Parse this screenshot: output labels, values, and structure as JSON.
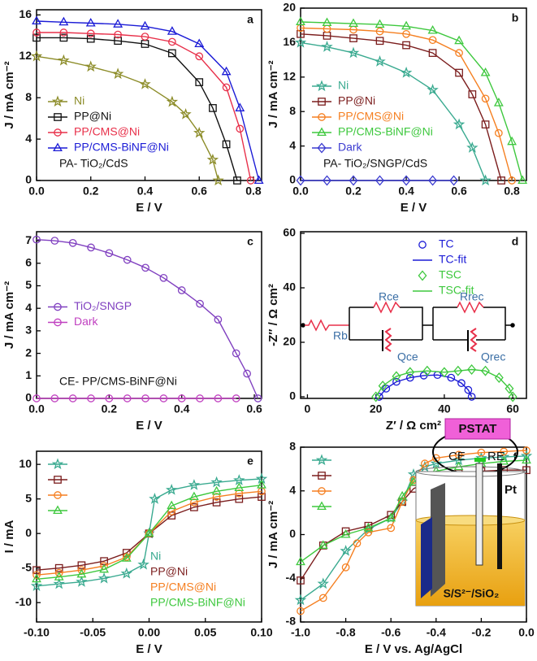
{
  "chart_data": [
    {
      "type": "line",
      "panel": "a",
      "note": "PA- TiO₂/CdS",
      "xlabel": "E / V",
      "ylabel": "J / mA cm⁻²",
      "xlim": [
        0,
        0.83
      ],
      "ylim": [
        0,
        16.5
      ],
      "xticks": [
        {
          "value": 0,
          "label": "0.0"
        },
        {
          "value": 0.2,
          "label": "0.2"
        },
        {
          "value": 0.4,
          "label": "0.4"
        },
        {
          "value": 0.6,
          "label": "0.6"
        },
        {
          "value": 0.8,
          "label": "0.8"
        }
      ],
      "yticks": [
        0,
        4,
        8,
        12,
        16
      ],
      "legend": "lower left",
      "series": [
        {
          "name": "Ni",
          "color": "#8c8c28",
          "marker": "star",
          "x": [
            0,
            0.1,
            0.2,
            0.3,
            0.4,
            0.5,
            0.55,
            0.6,
            0.65,
            0.67
          ],
          "values": [
            12,
            11.6,
            11,
            10.3,
            9.3,
            7.6,
            6.4,
            4.6,
            2,
            0
          ]
        },
        {
          "name": "PP@Ni",
          "color": "#111111",
          "marker": "square",
          "x": [
            0,
            0.1,
            0.2,
            0.3,
            0.4,
            0.5,
            0.6,
            0.65,
            0.7,
            0.74
          ],
          "values": [
            13.8,
            13.8,
            13.7,
            13.5,
            13.2,
            12.3,
            9.5,
            7,
            3.5,
            0
          ]
        },
        {
          "name": "PP/CMS@Ni",
          "color": "#e8304a",
          "marker": "circle",
          "x": [
            0,
            0.1,
            0.2,
            0.3,
            0.4,
            0.5,
            0.6,
            0.7,
            0.75,
            0.79
          ],
          "values": [
            14.3,
            14.3,
            14.2,
            14.1,
            13.9,
            13.4,
            12,
            9,
            5,
            0
          ]
        },
        {
          "name": "PP/CMS-BiNF@Ni",
          "color": "#1b1bd6",
          "marker": "triangle",
          "x": [
            0,
            0.1,
            0.2,
            0.3,
            0.4,
            0.5,
            0.6,
            0.7,
            0.75,
            0.82
          ],
          "values": [
            15.4,
            15.3,
            15.2,
            15.1,
            14.9,
            14.4,
            13.2,
            10.5,
            7,
            0
          ]
        }
      ]
    },
    {
      "type": "line",
      "panel": "b",
      "note": "PA- TiO₂/SNGP/CdS",
      "xlabel": "E / V",
      "ylabel": "J / mA cm⁻²",
      "xlim": [
        0,
        0.855
      ],
      "ylim": [
        0,
        20
      ],
      "xticks": [
        {
          "value": 0,
          "label": "0.0"
        },
        {
          "value": 0.2,
          "label": "0.2"
        },
        {
          "value": 0.4,
          "label": "0.4"
        },
        {
          "value": 0.6,
          "label": "0.6"
        },
        {
          "value": 0.8,
          "label": "0.8"
        }
      ],
      "yticks": [
        0,
        4,
        8,
        12,
        16,
        20
      ],
      "legend": "center left",
      "series": [
        {
          "name": "Ni",
          "color": "#3aaa90",
          "marker": "star",
          "x": [
            0,
            0.1,
            0.2,
            0.3,
            0.4,
            0.5,
            0.6,
            0.65,
            0.7
          ],
          "values": [
            16,
            15.5,
            14.8,
            13.8,
            12.5,
            10.5,
            6.5,
            3.8,
            0
          ]
        },
        {
          "name": "PP@Ni",
          "color": "#7b1d1d",
          "marker": "square",
          "x": [
            0,
            0.1,
            0.2,
            0.3,
            0.4,
            0.5,
            0.6,
            0.65,
            0.7,
            0.76
          ],
          "values": [
            17,
            16.8,
            16.5,
            16.2,
            15.7,
            14.8,
            12.5,
            10,
            6.5,
            0
          ]
        },
        {
          "name": "PP/CMS@Ni",
          "color": "#f57f20",
          "marker": "circle",
          "x": [
            0,
            0.1,
            0.2,
            0.3,
            0.4,
            0.5,
            0.6,
            0.7,
            0.75,
            0.8
          ],
          "values": [
            17.7,
            17.6,
            17.5,
            17.3,
            17,
            16.3,
            14.8,
            9.5,
            5.5,
            0
          ]
        },
        {
          "name": "PP/CMS-BiNF@Ni",
          "color": "#3ec83e",
          "marker": "triangle",
          "x": [
            0,
            0.1,
            0.2,
            0.3,
            0.4,
            0.5,
            0.6,
            0.7,
            0.75,
            0.8,
            0.84
          ],
          "values": [
            18.4,
            18.3,
            18.2,
            18.1,
            17.9,
            17.4,
            16.2,
            12.5,
            9,
            4.5,
            0
          ]
        },
        {
          "name": "Dark",
          "color": "#3a3ad0",
          "marker": "diamond",
          "x": [
            0,
            0.1,
            0.2,
            0.3,
            0.4,
            0.5,
            0.58
          ],
          "values": [
            0,
            0,
            0,
            0,
            0,
            0,
            0
          ]
        }
      ]
    },
    {
      "type": "line",
      "panel": "c",
      "note": "CE- PP/CMS-BiNF@Ni",
      "xlabel": "E / V",
      "ylabel": "J / mA cm⁻²",
      "xlim": [
        0,
        0.62
      ],
      "ylim": [
        0,
        7.4
      ],
      "xticks": [
        {
          "value": 0,
          "label": "0.0"
        },
        {
          "value": 0.2,
          "label": "0.2"
        },
        {
          "value": 0.4,
          "label": "0.4"
        },
        {
          "value": 0.6,
          "label": "0.6"
        }
      ],
      "yticks": [
        0,
        1,
        2,
        3,
        4,
        5,
        6,
        7
      ],
      "legend": "center left",
      "series": [
        {
          "name": "TiO₂/SNGP",
          "color": "#8040c0",
          "marker": "circle",
          "x": [
            0,
            0.05,
            0.1,
            0.15,
            0.2,
            0.25,
            0.3,
            0.35,
            0.4,
            0.45,
            0.5,
            0.55,
            0.58,
            0.61
          ],
          "values": [
            7.05,
            7,
            6.9,
            6.7,
            6.45,
            6.15,
            5.8,
            5.35,
            4.8,
            4.2,
            3.5,
            2.0,
            1.1,
            0
          ]
        },
        {
          "name": "Dark",
          "color": "#c040c0",
          "marker": "circle",
          "x": [
            0,
            0.05,
            0.1,
            0.15,
            0.2,
            0.25,
            0.3,
            0.35,
            0.4,
            0.45,
            0.5,
            0.55
          ],
          "values": [
            0,
            0,
            0,
            0,
            0,
            0,
            0,
            0,
            0,
            0,
            0,
            0
          ]
        }
      ]
    },
    {
      "type": "scatter",
      "panel": "d",
      "xlabel": "Z′ / Ω cm²",
      "ylabel": "-Z″ / Ω cm²",
      "xlim": [
        -2,
        64
      ],
      "ylim": [
        -0.6,
        60.6
      ],
      "xticks": [
        0,
        20,
        40,
        60
      ],
      "yticks": [
        0,
        20,
        40,
        60
      ],
      "legend": "upper right",
      "circuit": [
        "Rb",
        "Rce",
        "Qce",
        "Rrec",
        "Qrec"
      ],
      "series": [
        {
          "name": "TC",
          "color": "#1b1bd6",
          "marker": "circle",
          "line": false,
          "x": [
            21,
            23,
            26,
            30,
            34,
            38,
            42,
            45,
            47,
            48
          ],
          "values": [
            0,
            3,
            5.5,
            7,
            7.8,
            8,
            7,
            5,
            2.5,
            0
          ]
        },
        {
          "name": "TC-fit",
          "color": "#1b1bd6",
          "marker": "none",
          "x": [
            21,
            23,
            26,
            30,
            34,
            38,
            42,
            45,
            47,
            48
          ],
          "values": [
            0,
            3,
            5.5,
            7,
            7.8,
            8,
            7,
            5,
            2.5,
            0
          ]
        },
        {
          "name": "TSC",
          "color": "#3ec83e",
          "marker": "diamond",
          "line": false,
          "x": [
            20,
            22,
            26,
            30,
            35,
            40,
            44,
            48,
            52,
            56,
            59,
            60
          ],
          "values": [
            0,
            4,
            7.5,
            9,
            9.5,
            9,
            9.5,
            10,
            9.5,
            7,
            3,
            0
          ]
        },
        {
          "name": "TSC-fit",
          "color": "#3ec83e",
          "marker": "none",
          "x": [
            20,
            22,
            26,
            30,
            35,
            40,
            44,
            48,
            52,
            56,
            59,
            60
          ],
          "values": [
            0,
            4,
            7.5,
            9,
            9.5,
            9,
            9.5,
            10,
            9.5,
            7,
            3,
            0
          ]
        }
      ]
    },
    {
      "type": "line",
      "panel": "e",
      "xlabel": "E / V",
      "ylabel": "I / mA",
      "xlim": [
        -0.1,
        0.1
      ],
      "ylim": [
        -12.8,
        11.9
      ],
      "xticks": [
        {
          "value": -0.1,
          "label": "-0.10"
        },
        {
          "value": -0.05,
          "label": "-0.05"
        },
        {
          "value": 0,
          "label": "0.00"
        },
        {
          "value": 0.05,
          "label": "0.05"
        },
        {
          "value": 0.1,
          "label": "0.10"
        }
      ],
      "yticks": [
        -10,
        -5,
        0,
        5,
        10
      ],
      "legend": "upper left",
      "label_corner": "lower right",
      "series": [
        {
          "name": "Ni",
          "color": "#3aaa90",
          "marker": "star",
          "x": [
            -0.1,
            -0.08,
            -0.06,
            -0.04,
            -0.02,
            -0.005,
            0,
            0.005,
            0.02,
            0.04,
            0.06,
            0.08,
            0.1
          ],
          "values": [
            -7.6,
            -7.3,
            -7,
            -6.5,
            -5.8,
            -4.5,
            0,
            5,
            6.3,
            7,
            7.4,
            7.7,
            7.9
          ]
        },
        {
          "name": "PP@Ni",
          "color": "#7b1d1d",
          "marker": "square",
          "x": [
            -0.1,
            -0.08,
            -0.06,
            -0.04,
            -0.02,
            0,
            0.02,
            0.04,
            0.06,
            0.08,
            0.1
          ],
          "values": [
            -5.3,
            -5,
            -4.6,
            -4,
            -2.8,
            0,
            2.6,
            3.8,
            4.5,
            5,
            5.3
          ]
        },
        {
          "name": "PP/CMS@Ni",
          "color": "#f57f20",
          "marker": "circle",
          "x": [
            -0.1,
            -0.08,
            -0.06,
            -0.04,
            -0.02,
            0,
            0.02,
            0.04,
            0.06,
            0.08,
            0.1
          ],
          "values": [
            -6,
            -5.7,
            -5.3,
            -4.7,
            -3.4,
            0,
            3.2,
            4.5,
            5.3,
            5.8,
            6.1
          ]
        },
        {
          "name": "PP/CMS-BiNF@Ni",
          "color": "#3ec83e",
          "marker": "triangle",
          "x": [
            -0.1,
            -0.08,
            -0.06,
            -0.04,
            -0.02,
            0,
            0.02,
            0.04,
            0.06,
            0.08,
            0.1
          ],
          "values": [
            -6.6,
            -6.3,
            -5.9,
            -5.2,
            -3.6,
            0,
            4,
            5.3,
            6.1,
            6.6,
            7
          ]
        }
      ]
    },
    {
      "type": "line",
      "panel": "f",
      "xlabel": "E / V vs. Ag/AgCl",
      "ylabel": "J / mA cm⁻²",
      "xlim": [
        -1,
        0
      ],
      "ylim": [
        -8,
        8
      ],
      "xticks": [
        {
          "value": -1,
          "label": "-1.0"
        },
        {
          "value": -0.8,
          "label": "-0.8"
        },
        {
          "value": -0.6,
          "label": "-0.6"
        },
        {
          "value": -0.4,
          "label": "-0.4"
        },
        {
          "value": -0.2,
          "label": "-0.2"
        },
        {
          "value": 0,
          "label": "0.0"
        }
      ],
      "yticks": [
        -8,
        -4,
        0,
        4,
        8
      ],
      "legend": "upper left",
      "inset": [
        "PSTAT",
        "CE",
        "RE",
        "Pt",
        "S/S²⁻/SiO₂"
      ],
      "series": [
        {
          "color": "#3aaa90",
          "marker": "star",
          "x": [
            -1,
            -0.9,
            -0.8,
            -0.7,
            -0.6,
            -0.55,
            -0.5,
            -0.45,
            -0.4,
            -0.3,
            -0.2,
            -0.1,
            0
          ],
          "values": [
            -6,
            -4.5,
            -1.5,
            0.5,
            1.5,
            3,
            5.5,
            6.2,
            6.5,
            6.8,
            7,
            7.1,
            7.2
          ]
        },
        {
          "color": "#7b1d1d",
          "marker": "square",
          "x": [
            -1,
            -0.9,
            -0.8,
            -0.7,
            -0.6,
            -0.55,
            -0.5,
            -0.4,
            -0.3,
            -0.2,
            -0.1,
            0
          ],
          "values": [
            -4.2,
            -1,
            0.3,
            0.8,
            1.8,
            3,
            4.2,
            5.2,
            5.6,
            5.8,
            5.9,
            5.9
          ]
        },
        {
          "color": "#f57f20",
          "marker": "circle",
          "x": [
            -1,
            -0.9,
            -0.8,
            -0.75,
            -0.7,
            -0.6,
            -0.55,
            -0.5,
            -0.45,
            -0.4,
            -0.3,
            -0.2,
            -0.1,
            0
          ],
          "values": [
            -7,
            -5.8,
            -3,
            -0.8,
            0.2,
            0.6,
            3,
            5,
            6.5,
            7,
            7.3,
            7.5,
            7.6,
            7.7
          ]
        },
        {
          "color": "#3ec83e",
          "marker": "triangle",
          "x": [
            -1,
            -0.9,
            -0.8,
            -0.7,
            -0.6,
            -0.55,
            -0.5,
            -0.4,
            -0.3,
            -0.2,
            -0.1,
            0
          ],
          "values": [
            -2.5,
            -1,
            0,
            0.6,
            1.5,
            3.5,
            4.8,
            5.8,
            6.2,
            6.5,
            6.7,
            6.8
          ]
        }
      ]
    }
  ]
}
